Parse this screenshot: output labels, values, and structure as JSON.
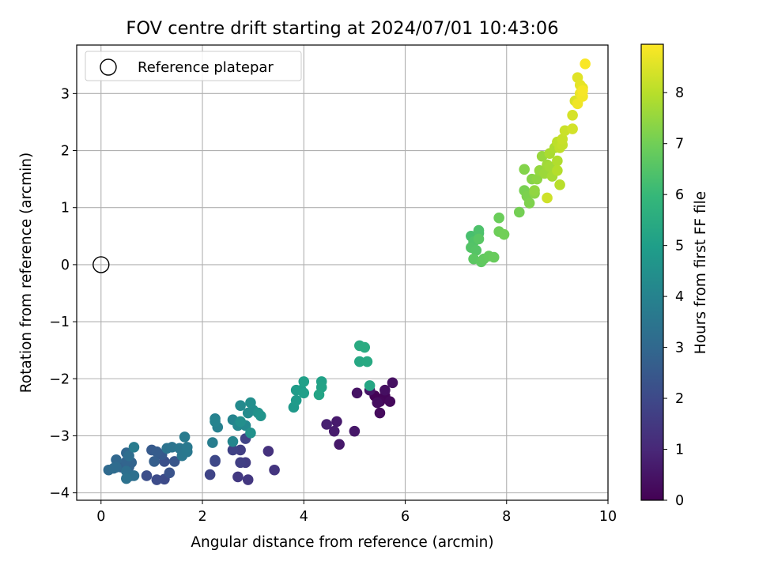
{
  "chart_data": {
    "type": "scatter",
    "title": "FOV centre drift starting at 2024/07/01 10:43:06",
    "xlabel": "Angular distance from reference (arcmin)",
    "ylabel": "Rotation from reference (arcmin)",
    "xlim": [
      -0.48,
      10
    ],
    "ylim": [
      -4.13,
      3.85
    ],
    "xticks": [
      0,
      2,
      4,
      6,
      8,
      10
    ],
    "xtick_labels": [
      "0",
      "2",
      "4",
      "6",
      "8",
      "10"
    ],
    "yticks": [
      -4,
      -3,
      -2,
      -1,
      0,
      1,
      2,
      3
    ],
    "ytick_labels": [
      "−4",
      "−3",
      "−2",
      "−1",
      "0",
      "1",
      "2",
      "3"
    ],
    "grid": true,
    "legend": {
      "placement": "top-left",
      "entries": [
        "Reference platepar"
      ]
    },
    "reference_point": {
      "x": 0,
      "y": 0,
      "marker": "open-circle"
    },
    "colorbar": {
      "label": "Hours from first FF file",
      "colormap": "viridis",
      "range": [
        0,
        8.95
      ],
      "ticks": [
        0,
        1,
        2,
        3,
        4,
        5,
        6,
        7,
        8
      ],
      "tick_labels": [
        "0",
        "1",
        "2",
        "3",
        "4",
        "5",
        "6",
        "7",
        "8"
      ]
    },
    "colors": {
      "viridis": [
        "#440154",
        "#482878",
        "#3e4989",
        "#31688e",
        "#26828e",
        "#1f9e89",
        "#35b779",
        "#6ece58",
        "#b5de2b",
        "#fde725"
      ]
    },
    "points": [
      [
        5.4,
        -2.3,
        0.05
      ],
      [
        5.6,
        -2.3,
        0.1
      ],
      [
        5.5,
        -2.4,
        0.15
      ],
      [
        5.7,
        -2.4,
        0.2
      ],
      [
        5.5,
        -2.6,
        0.25
      ],
      [
        5.45,
        -2.42,
        0.3
      ],
      [
        5.6,
        -2.2,
        0.35
      ],
      [
        5.75,
        -2.07,
        0.4
      ],
      [
        5.05,
        -2.25,
        0.45
      ],
      [
        5.3,
        -2.2,
        0.5
      ],
      [
        5.0,
        -2.92,
        0.55
      ],
      [
        4.7,
        -3.15,
        0.6
      ],
      [
        4.65,
        -2.75,
        0.65
      ],
      [
        4.6,
        -2.92,
        0.7
      ],
      [
        4.45,
        -2.8,
        0.8
      ],
      [
        3.3,
        -3.27,
        1.3
      ],
      [
        3.42,
        -3.6,
        1.4
      ],
      [
        2.9,
        -3.77,
        1.45
      ],
      [
        2.7,
        -3.72,
        1.5
      ],
      [
        2.85,
        -3.47,
        1.6
      ],
      [
        2.75,
        -3.25,
        1.65
      ],
      [
        2.75,
        -3.47,
        1.7
      ],
      [
        2.6,
        -3.25,
        1.75
      ],
      [
        2.85,
        -3.05,
        1.8
      ],
      [
        2.15,
        -3.68,
        1.85
      ],
      [
        2.25,
        -3.45,
        1.9
      ],
      [
        2.25,
        -3.43,
        1.95
      ],
      [
        1.25,
        -3.76,
        2.05
      ],
      [
        1.1,
        -3.77,
        2.1
      ],
      [
        0.9,
        -3.7,
        2.15
      ],
      [
        1.25,
        -3.45,
        2.2
      ],
      [
        1.35,
        -3.65,
        2.3
      ],
      [
        1.45,
        -3.45,
        2.4
      ],
      [
        1.2,
        -3.33,
        2.5
      ],
      [
        1.0,
        -3.25,
        2.55
      ],
      [
        1.1,
        -3.28,
        2.6
      ],
      [
        1.05,
        -3.45,
        2.65
      ],
      [
        0.6,
        -3.7,
        2.7
      ],
      [
        0.55,
        -3.55,
        2.75
      ],
      [
        0.4,
        -3.55,
        2.8
      ],
      [
        0.6,
        -3.47,
        2.85
      ],
      [
        0.5,
        -3.45,
        2.9
      ],
      [
        0.5,
        -3.3,
        2.95
      ],
      [
        0.3,
        -3.42,
        3.0
      ],
      [
        0.15,
        -3.6,
        3.05
      ],
      [
        0.3,
        -3.55,
        3.1
      ],
      [
        0.25,
        -3.57,
        3.15
      ],
      [
        0.55,
        -3.35,
        3.2
      ],
      [
        0.5,
        -3.62,
        3.25
      ],
      [
        0.65,
        -3.7,
        3.3
      ],
      [
        0.5,
        -3.75,
        3.35
      ],
      [
        1.3,
        -3.22,
        3.4
      ],
      [
        1.4,
        -3.2,
        3.45
      ],
      [
        1.55,
        -3.22,
        3.5
      ],
      [
        1.6,
        -3.35,
        3.55
      ],
      [
        1.7,
        -3.28,
        3.6
      ],
      [
        1.7,
        -3.2,
        3.65
      ],
      [
        1.65,
        -3.02,
        3.7
      ],
      [
        0.65,
        -3.2,
        3.75
      ],
      [
        2.2,
        -3.12,
        3.8
      ],
      [
        2.3,
        -2.85,
        3.9
      ],
      [
        2.25,
        -2.7,
        3.95
      ],
      [
        2.25,
        -2.75,
        4.0
      ],
      [
        2.6,
        -2.72,
        4.05
      ],
      [
        2.6,
        -3.1,
        4.1
      ],
      [
        2.7,
        -2.82,
        4.15
      ],
      [
        2.85,
        -2.82,
        4.2
      ],
      [
        2.75,
        -2.47,
        4.25
      ],
      [
        2.9,
        -2.6,
        4.3
      ],
      [
        3.0,
        -2.55,
        4.35
      ],
      [
        2.95,
        -2.42,
        4.4
      ],
      [
        2.75,
        -2.75,
        4.45
      ],
      [
        2.95,
        -2.95,
        4.5
      ],
      [
        3.1,
        -2.6,
        4.55
      ],
      [
        3.15,
        -2.65,
        4.6
      ],
      [
        3.8,
        -2.5,
        4.8
      ],
      [
        3.85,
        -2.38,
        4.85
      ],
      [
        3.85,
        -2.2,
        4.9
      ],
      [
        3.95,
        -2.2,
        4.95
      ],
      [
        4.0,
        -2.25,
        5.0
      ],
      [
        4.0,
        -2.05,
        5.05
      ],
      [
        4.35,
        -2.05,
        5.1
      ],
      [
        4.35,
        -2.15,
        5.15
      ],
      [
        4.3,
        -2.28,
        5.2
      ],
      [
        5.3,
        -2.12,
        5.3
      ],
      [
        5.1,
        -1.7,
        5.35
      ],
      [
        5.25,
        -1.7,
        5.4
      ],
      [
        5.1,
        -1.42,
        5.45
      ],
      [
        5.2,
        -1.45,
        5.5
      ],
      [
        7.3,
        0.5,
        6.3
      ],
      [
        7.45,
        0.55,
        6.35
      ],
      [
        7.45,
        0.6,
        6.4
      ],
      [
        7.35,
        0.4,
        6.45
      ],
      [
        7.3,
        0.3,
        6.5
      ],
      [
        7.4,
        0.25,
        6.55
      ],
      [
        7.45,
        0.45,
        6.6
      ],
      [
        7.35,
        0.1,
        6.65
      ],
      [
        7.5,
        0.05,
        6.7
      ],
      [
        7.55,
        0.1,
        6.75
      ],
      [
        7.65,
        0.15,
        6.8
      ],
      [
        7.75,
        0.13,
        6.85
      ],
      [
        7.85,
        0.82,
        6.9
      ],
      [
        7.85,
        0.58,
        6.95
      ],
      [
        7.95,
        0.53,
        7.0
      ],
      [
        8.25,
        0.92,
        7.05
      ],
      [
        8.35,
        1.3,
        7.1
      ],
      [
        8.4,
        1.2,
        7.15
      ],
      [
        8.45,
        1.08,
        7.2
      ],
      [
        8.35,
        1.67,
        7.25
      ],
      [
        8.5,
        1.5,
        7.3
      ],
      [
        8.55,
        1.25,
        7.35
      ],
      [
        8.6,
        1.5,
        7.4
      ],
      [
        8.55,
        1.3,
        7.45
      ],
      [
        8.65,
        1.65,
        7.5
      ],
      [
        8.7,
        1.9,
        7.55
      ],
      [
        8.75,
        1.6,
        7.6
      ],
      [
        8.8,
        1.75,
        7.65
      ],
      [
        8.85,
        1.72,
        7.7
      ],
      [
        8.9,
        1.55,
        7.75
      ],
      [
        8.85,
        1.95,
        7.8
      ],
      [
        8.95,
        2.05,
        7.85
      ],
      [
        9.0,
        1.82,
        7.9
      ],
      [
        9.0,
        1.65,
        7.95
      ],
      [
        9.05,
        1.4,
        8.0
      ],
      [
        9.0,
        2.15,
        8.05
      ],
      [
        9.05,
        2.05,
        8.1
      ],
      [
        9.1,
        2.1,
        8.15
      ],
      [
        9.1,
        2.2,
        8.2
      ],
      [
        9.15,
        2.35,
        8.25
      ],
      [
        8.8,
        1.17,
        8.3
      ],
      [
        9.3,
        2.38,
        8.35
      ],
      [
        9.3,
        2.62,
        8.4
      ],
      [
        9.35,
        2.87,
        8.45
      ],
      [
        9.4,
        2.85,
        8.5
      ],
      [
        9.4,
        3.28,
        8.55
      ],
      [
        9.45,
        3.15,
        8.6
      ],
      [
        9.5,
        3.1,
        8.65
      ],
      [
        9.45,
        3.0,
        8.7
      ],
      [
        9.4,
        2.82,
        8.75
      ],
      [
        9.5,
        2.95,
        8.8
      ],
      [
        9.5,
        3.05,
        8.85
      ],
      [
        9.55,
        3.52,
        8.9
      ]
    ]
  }
}
